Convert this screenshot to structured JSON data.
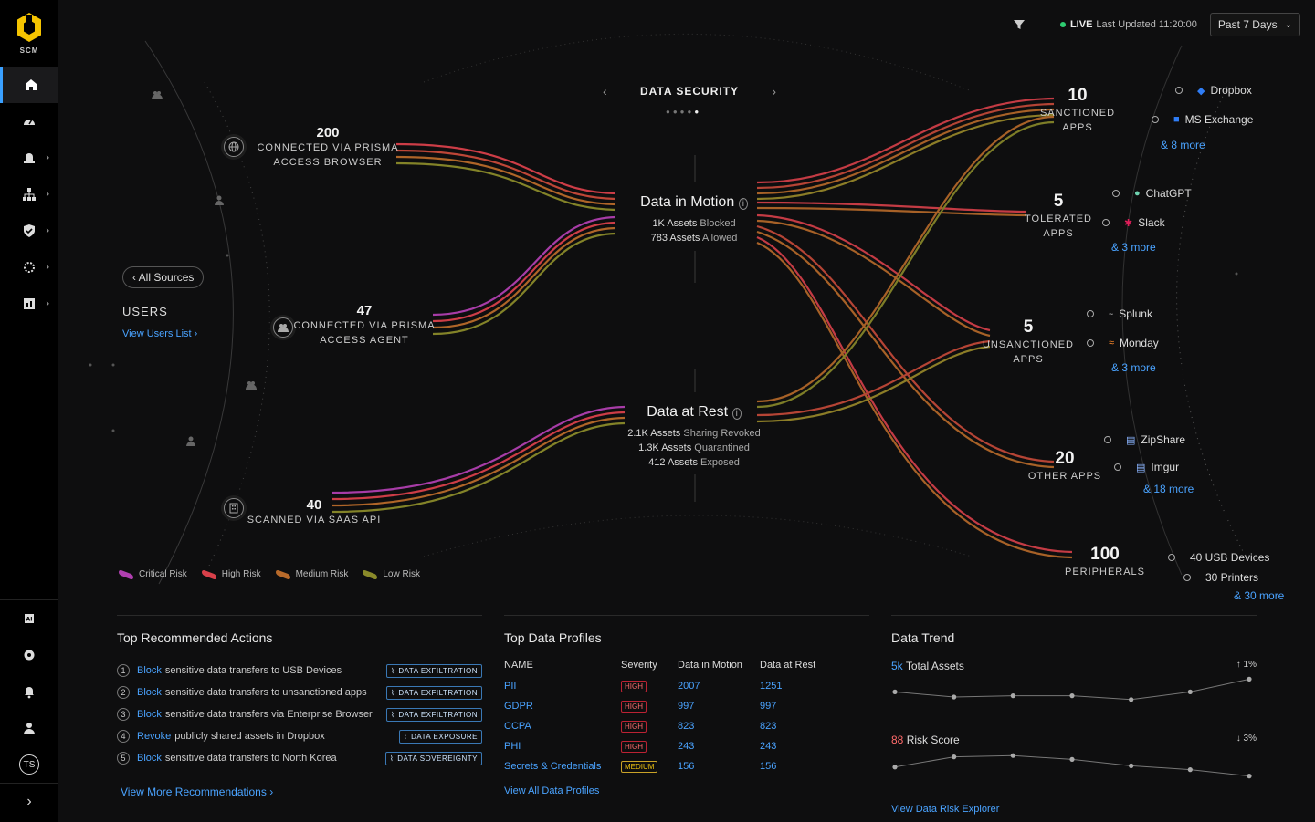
{
  "app": {
    "logo_text": "SCM",
    "user_initials": "TS"
  },
  "sidebar": {
    "items": [
      {
        "icon": "home-icon",
        "active": true
      },
      {
        "icon": "dashboard-icon"
      },
      {
        "icon": "alert-icon"
      },
      {
        "icon": "network-icon"
      },
      {
        "icon": "shield-icon"
      },
      {
        "icon": "settings-gear-icon"
      },
      {
        "icon": "report-icon"
      }
    ]
  },
  "topbar": {
    "live_label": "LIVE",
    "updated": "Last Updated 11:20:00",
    "range": "Past 7 Days"
  },
  "flow": {
    "header": "DATA SECURITY",
    "all_sources": "All Sources",
    "users_title": "USERS",
    "users_link": "View Users List",
    "sources": [
      {
        "count": "200",
        "caption_1": "CONNECTED VIA PRISMA",
        "caption_2": "ACCESS BROWSER"
      },
      {
        "count": "47",
        "caption_1": "CONNECTED VIA PRISMA",
        "caption_2": "ACCESS AGENT"
      },
      {
        "count": "40",
        "caption_1": "SCANNED VIA SAAS API",
        "caption_2": ""
      }
    ],
    "motion": {
      "title": "Data in Motion",
      "lines": [
        {
          "value": "1K Assets",
          "label": "Blocked"
        },
        {
          "value": "783 Assets",
          "label": "Allowed"
        }
      ]
    },
    "rest": {
      "title": "Data at Rest",
      "lines": [
        {
          "value": "2.1K Assets",
          "label": "Sharing Revoked"
        },
        {
          "value": "1.3K Assets",
          "label": "Quarantined"
        },
        {
          "value": "412 Assets",
          "label": "Exposed"
        }
      ]
    },
    "destinations": [
      {
        "count": "10",
        "caption_1": "SANCTIONED",
        "caption_2": "APPS",
        "apps": [
          "Dropbox",
          "MS Exchange"
        ],
        "more": "& 8 more"
      },
      {
        "count": "5",
        "caption_1": "TOLERATED",
        "caption_2": "APPS",
        "apps": [
          "ChatGPT",
          "Slack"
        ],
        "more": "& 3 more"
      },
      {
        "count": "5",
        "caption_1": "UNSANCTIONED",
        "caption_2": "APPS",
        "apps": [
          "Splunk",
          "Monday"
        ],
        "more": "& 3 more"
      },
      {
        "count": "20",
        "caption_1": "OTHER APPS",
        "caption_2": "",
        "apps": [
          "ZipShare",
          "Imgur"
        ],
        "more": "& 18 more"
      },
      {
        "count": "100",
        "caption_1": "PERIPHERALS",
        "caption_2": "",
        "apps": [
          "40 USB Devices",
          "30 Printers"
        ],
        "more": "& 30 more"
      }
    ],
    "legend": [
      "Critical Risk",
      "High Risk",
      "Medium Risk",
      "Low Risk"
    ],
    "colors": {
      "critical": "#b03fb0",
      "high": "#d8404a",
      "medium": "#b86a2a",
      "low": "#8a8a2a",
      "accent": "#4aa3ff"
    }
  },
  "actions": {
    "title": "Top Recommended Actions",
    "items": [
      {
        "n": "1",
        "verb": "Block",
        "text": "sensitive data transfers to USB Devices",
        "tag": "DATA EXFILTRATION"
      },
      {
        "n": "2",
        "verb": "Block",
        "text": "sensitive data transfers to unsanctioned apps",
        "tag": "DATA EXFILTRATION"
      },
      {
        "n": "3",
        "verb": "Block",
        "text": "sensitive data transfers via Enterprise Browser",
        "tag": "DATA EXFILTRATION"
      },
      {
        "n": "4",
        "verb": "Revoke",
        "text": "publicly shared assets in Dropbox",
        "tag": "DATA EXPOSURE"
      },
      {
        "n": "5",
        "verb": "Block",
        "text": "sensitive data transfers to North Korea",
        "tag": "DATA SOVEREIGNTY"
      }
    ],
    "link": "View More Recommendations"
  },
  "profiles": {
    "title": "Top Data Profiles",
    "headers": [
      "NAME",
      "Severity",
      "Data in Motion",
      "Data at Rest"
    ],
    "rows": [
      {
        "name": "PII",
        "sev": "HIGH",
        "motion": "2007",
        "rest": "1251"
      },
      {
        "name": "GDPR",
        "sev": "HIGH",
        "motion": "997",
        "rest": "997"
      },
      {
        "name": "CCPA",
        "sev": "HIGH",
        "motion": "823",
        "rest": "823"
      },
      {
        "name": "PHI",
        "sev": "HIGH",
        "motion": "243",
        "rest": "243"
      },
      {
        "name": "Secrets & Credentials",
        "sev": "MEDIUM",
        "motion": "156",
        "rest": "156"
      }
    ],
    "link": "View All Data Profiles"
  },
  "trend": {
    "title": "Data Trend",
    "assets": {
      "value": "5k",
      "label": "Total Assets",
      "change": "↑ 1%",
      "points": [
        0.45,
        0.25,
        0.3,
        0.3,
        0.15,
        0.45,
        0.95
      ]
    },
    "risk": {
      "value": "88",
      "label": "Risk Score",
      "change": "↓ 3%",
      "points": [
        0.4,
        0.8,
        0.85,
        0.7,
        0.45,
        0.3,
        0.05
      ]
    },
    "link": "View Data Risk Explorer"
  }
}
